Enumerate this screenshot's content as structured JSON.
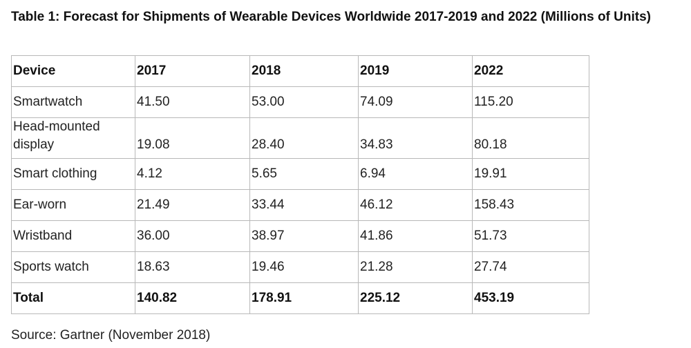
{
  "title": "Table 1: Forecast for Shipments of Wearable Devices Worldwide 2017-2019 and 2022 (Millions of Units)",
  "table": {
    "headers": [
      "Device",
      "2017",
      "2018",
      "2019",
      "2022"
    ],
    "rows": [
      [
        "Smartwatch",
        "41.50",
        "53.00",
        "74.09",
        "115.20"
      ],
      [
        "Head-mounted display",
        "19.08",
        "28.40",
        "34.83",
        "80.18"
      ],
      [
        "Smart clothing",
        "4.12",
        "5.65",
        "6.94",
        "19.91"
      ],
      [
        "Ear-worn",
        "21.49",
        "33.44",
        "46.12",
        "158.43"
      ],
      [
        "Wristband",
        "36.00",
        "38.97",
        "41.86",
        "51.73"
      ],
      [
        "Sports watch",
        "18.63",
        "19.46",
        "21.28",
        "27.74"
      ]
    ],
    "total": [
      "Total",
      "140.82",
      "178.91",
      "225.12",
      "453.19"
    ]
  },
  "source": "Source: Gartner (November 2018)"
}
